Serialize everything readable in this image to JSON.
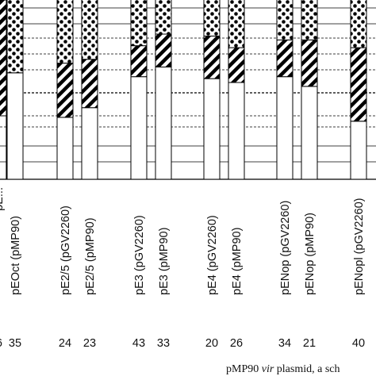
{
  "chart_data": {
    "type": "bar",
    "stacked": true,
    "percent_scale": true,
    "grid": true,
    "categories": [
      "pEOct (pMP90)",
      "pE2/5 (pGV2260)",
      "pE2/5 (pMP90)",
      "pE3 (pGV2260)",
      "pE3 (pMP90)",
      "pE4 (pGV2260)",
      "pE4 (pMP90)",
      "pENop (pGV2260)",
      "pENop (pMP90)",
      "pENopl (pGV2260)"
    ],
    "counts": [
      "35",
      "24",
      "23",
      "43",
      "33",
      "20",
      "26",
      "34",
      "21",
      "40"
    ],
    "partial_labels": [
      "pE...",
      "6"
    ],
    "series": [
      {
        "pattern": "white",
        "values": [
          55,
          32,
          37,
          53,
          58,
          52,
          50,
          53,
          48,
          30
        ]
      },
      {
        "pattern": "diagonal-hatch",
        "values": [
          0,
          28,
          25,
          16,
          17,
          22,
          18,
          19,
          24,
          38
        ]
      },
      {
        "pattern": "dotted",
        "values": [
          45,
          40,
          38,
          31,
          25,
          26,
          28,
          28,
          26,
          32
        ]
      },
      {
        "pattern": "black",
        "values": [
          0,
          0,
          0,
          0,
          0,
          0,
          4,
          0,
          2,
          0
        ]
      }
    ],
    "caption_fragment": "pMP90 vir plasmid, a sch",
    "colors": {
      "solid": "#000000",
      "paper": "#ffffff"
    }
  }
}
